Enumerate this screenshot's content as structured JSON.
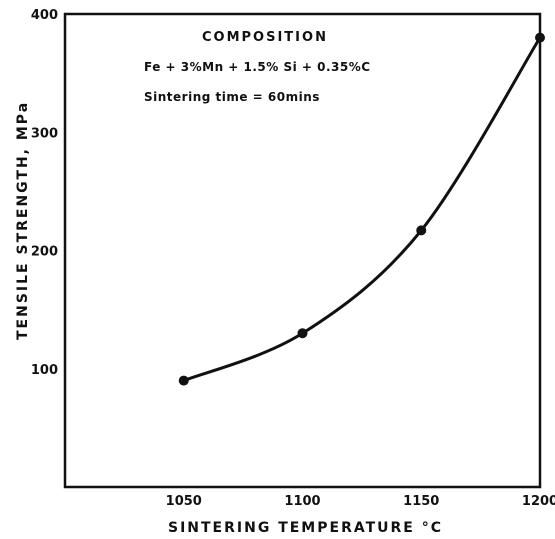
{
  "chart_data": {
    "type": "line",
    "xlabel": "SINTERING TEMPERATURE °C",
    "ylabel": "TENSILE STRENGTH, MPa",
    "xlim": [
      1000,
      1200
    ],
    "ylim": [
      0,
      400
    ],
    "x_ticks": [
      "1050",
      "1100",
      "1150",
      "1200"
    ],
    "y_ticks": [
      "100",
      "200",
      "300",
      "400"
    ],
    "annotations": {
      "title": "COMPOSITION",
      "composition": "Fe + 3%Mn + 1.5% Si + 0.35%C",
      "time": "Sintering time = 60mins"
    },
    "series": [
      {
        "x": [
          1050,
          1100,
          1150,
          1200
        ],
        "y": [
          90,
          130,
          217,
          380
        ]
      }
    ],
    "grid": false
  }
}
